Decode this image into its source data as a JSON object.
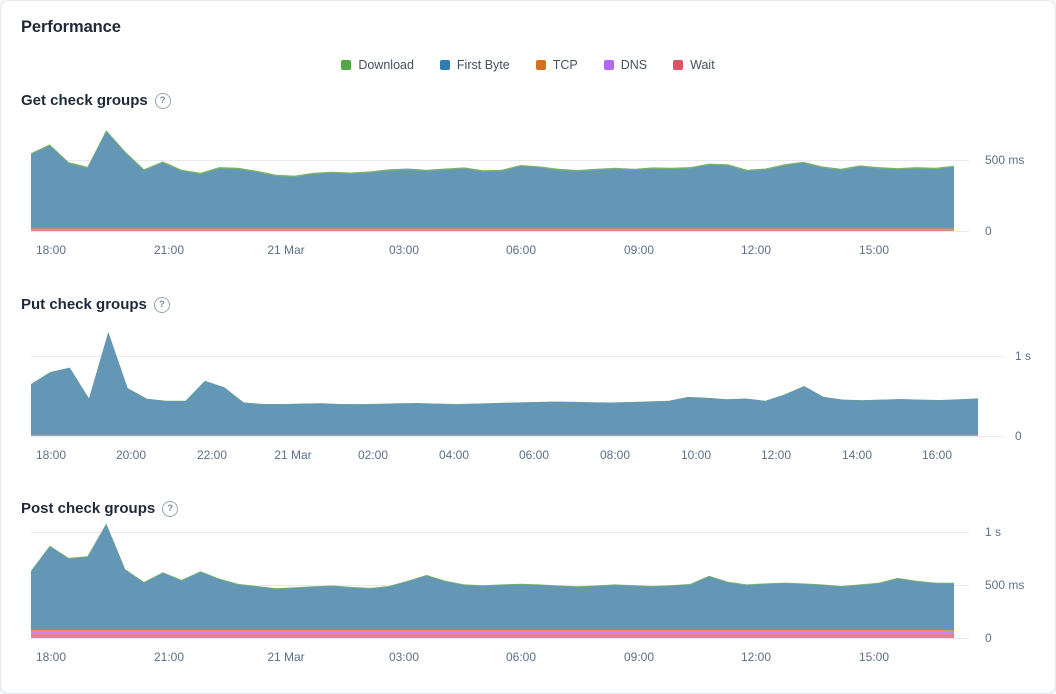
{
  "card": {
    "title": "Performance"
  },
  "icons": {
    "help": "?"
  },
  "legend": {
    "items": [
      {
        "label": "Download",
        "color": "#52A944",
        "fill": "#79B369"
      },
      {
        "label": "First Byte",
        "color": "#2E7FB0",
        "fill": "#6496B5"
      },
      {
        "label": "TCP",
        "color": "#D2711F",
        "fill": "#DC9155"
      },
      {
        "label": "DNS",
        "color": "#B468EF",
        "fill": "#C289F0"
      },
      {
        "label": "Wait",
        "color": "#DD5365",
        "fill": "#E8818F"
      }
    ]
  },
  "chart_data": [
    {
      "type": "area",
      "title": "Get check groups",
      "unit": "ms",
      "legend_position": "top-center",
      "grid": true,
      "x_ticks": [
        "18:00",
        "21:00",
        "21 Mar",
        "03:00",
        "06:00",
        "09:00",
        "12:00",
        "15:00"
      ],
      "y_ticks": [
        {
          "label": "500 ms",
          "value": 500
        },
        {
          "label": "0",
          "value": 0
        }
      ],
      "y_max_ms": 810,
      "stack_bottom_to_top": [
        "Wait",
        "DNS",
        "TCP",
        "First Byte",
        "Download"
      ],
      "flat_layers_ms": {
        "Wait": 8,
        "DNS": 6,
        "TCP": 4,
        "Download": 10
      },
      "total_ms": [
        549,
        610,
        485,
        452,
        710,
        560,
        435,
        490,
        432,
        410,
        450,
        445,
        424,
        396,
        390,
        410,
        418,
        412,
        420,
        435,
        440,
        432,
        440,
        448,
        428,
        432,
        465,
        455,
        438,
        430,
        438,
        445,
        438,
        448,
        445,
        450,
        475,
        470,
        432,
        440,
        470,
        488,
        455,
        438,
        462,
        450,
        443,
        450,
        445,
        460
      ]
    },
    {
      "type": "area",
      "title": "Put check groups",
      "unit": "ms",
      "legend_position": "top-center",
      "grid": true,
      "x_ticks": [
        "18:00",
        "20:00",
        "22:00",
        "21 Mar",
        "02:00",
        "04:00",
        "06:00",
        "08:00",
        "10:00",
        "12:00",
        "14:00",
        "16:00"
      ],
      "y_ticks": [
        {
          "label": "1 s",
          "value": 1000
        },
        {
          "label": "0",
          "value": 0
        }
      ],
      "y_max_ms": 1437,
      "stack_bottom_to_top": [
        "Wait",
        "DNS",
        "TCP",
        "First Byte",
        "Download"
      ],
      "flat_layers_ms": {
        "Wait": 8,
        "DNS": 4,
        "TCP": 4,
        "Download": 3
      },
      "total_ms": [
        650,
        800,
        855,
        470,
        1300,
        600,
        465,
        440,
        440,
        690,
        610,
        420,
        400,
        400,
        405,
        410,
        400,
        398,
        402,
        408,
        412,
        405,
        400,
        405,
        412,
        418,
        425,
        430,
        428,
        422,
        418,
        425,
        432,
        440,
        488,
        478,
        460,
        468,
        440,
        520,
        625,
        490,
        455,
        448,
        455,
        462,
        455,
        450,
        458,
        470
      ]
    },
    {
      "type": "area",
      "title": "Post check groups",
      "unit": "ms",
      "legend_position": "top-center",
      "grid": true,
      "x_ticks": [
        "18:00",
        "21:00",
        "21 Mar",
        "03:00",
        "06:00",
        "09:00",
        "12:00",
        "15:00"
      ],
      "y_ticks": [
        {
          "label": "1 s",
          "value": 1000
        },
        {
          "label": "500 ms",
          "value": 500
        },
        {
          "label": "0",
          "value": 0
        }
      ],
      "y_max_ms": 1122,
      "stack_bottom_to_top": [
        "Wait",
        "DNS",
        "TCP",
        "First Byte",
        "Download"
      ],
      "flat_layers_ms": {
        "Wait": 38,
        "DNS": 28,
        "TCP": 10,
        "Download": 8
      },
      "total_ms": [
        634,
        870,
        755,
        770,
        1080,
        650,
        528,
        620,
        548,
        630,
        560,
        510,
        490,
        470,
        478,
        488,
        495,
        482,
        472,
        490,
        540,
        595,
        540,
        505,
        498,
        505,
        512,
        505,
        495,
        488,
        495,
        505,
        498,
        490,
        498,
        510,
        586,
        530,
        505,
        515,
        522,
        515,
        505,
        490,
        505,
        520,
        567,
        540,
        522,
        520
      ]
    }
  ]
}
